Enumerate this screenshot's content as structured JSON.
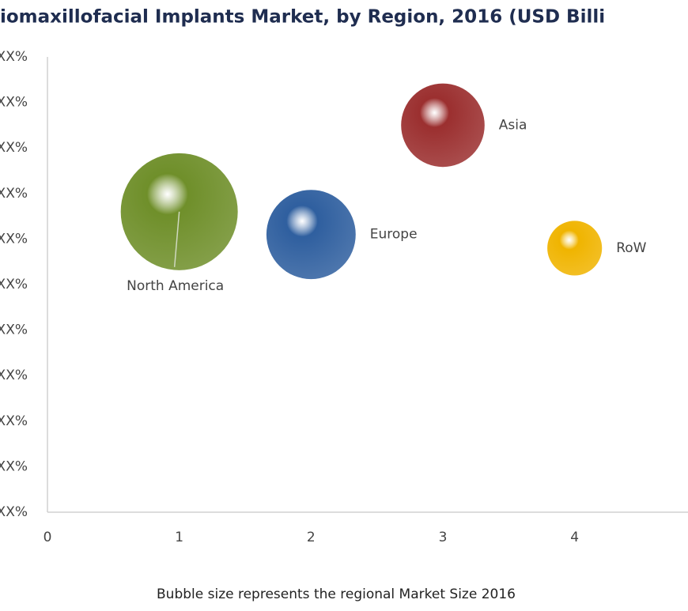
{
  "chart_data": {
    "type": "bubble",
    "title": "iomaxillofacial Implants Market, by Region, 2016 (USD Billi",
    "footnote": "Bubble size represents the regional Market Size 2016",
    "categories": [
      "North America",
      "Europe",
      "Asia",
      "RoW"
    ],
    "x": [
      1,
      2,
      3,
      4
    ],
    "values": [
      6.6,
      6.1,
      8.5,
      5.8
    ],
    "sizes": [
      5.5,
      3.2,
      2.8,
      1.2
    ],
    "colors": [
      "#6f8f2a",
      "#2f5f9f",
      "#9b2f2f",
      "#f0b400"
    ],
    "xlim": [
      0,
      4.86
    ],
    "xticks": [
      0,
      1,
      2,
      3,
      4
    ],
    "ylim": [
      0,
      10
    ],
    "yticks": [
      {
        "value": 0,
        "label": "XX%"
      },
      {
        "value": 1,
        "label": "XX%"
      },
      {
        "value": 2,
        "label": "XX%"
      },
      {
        "value": 3,
        "label": "XX%"
      },
      {
        "value": 4,
        "label": "XX%"
      },
      {
        "value": 5,
        "label": "XX%"
      },
      {
        "value": 6,
        "label": "XX%"
      },
      {
        "value": 7,
        "label": "XX%"
      },
      {
        "value": 8,
        "label": "XX%"
      },
      {
        "value": 9,
        "label": "XX%"
      },
      {
        "value": 10,
        "label": "XX%"
      }
    ]
  }
}
